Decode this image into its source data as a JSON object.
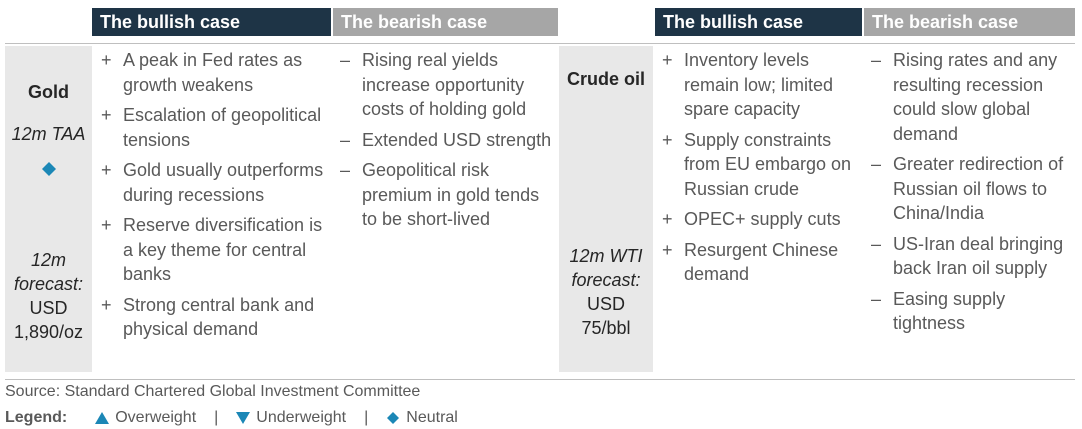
{
  "panels": [
    {
      "asset": "Gold",
      "taa": "12m TAA",
      "forecast_label": "12m forecast:",
      "forecast": "USD 1,890/oz",
      "bullish_header": "The bullish case",
      "bearish_header": "The bearish case",
      "bullish_marker": "+",
      "bearish_marker": "–",
      "bullish": [
        "A peak in Fed rates as growth weakens",
        "Escalation of geopolitical tensions",
        "Gold usually outperforms during recessions",
        "Reserve diversification is a key theme for central banks",
        "Strong central bank and physical demand"
      ],
      "bearish": [
        "Rising real yields increase opportunity costs of holding gold",
        "Extended USD strength",
        "Geopolitical risk premium in gold tends to be short-lived"
      ]
    },
    {
      "asset": "Crude oil",
      "forecast_label": "12m WTI forecast:",
      "forecast": "USD 75/bbl",
      "bullish_header": "The bullish case",
      "bearish_header": "The bearish case",
      "bullish_marker": "+",
      "bearish_marker": "–",
      "bullish": [
        "Inventory levels remain low; limited spare capacity",
        "Supply constraints from EU embargo on Russian crude",
        "OPEC+ supply cuts",
        "Resurgent Chinese demand"
      ],
      "bearish": [
        "Rising rates and any resulting recession could slow global demand",
        "Greater redirection of Russian oil flows to China/India",
        "US-Iran deal bringing back Iran oil supply",
        "Easing supply tightness"
      ]
    }
  ],
  "source": "Source: Standard Chartered Global Investment Committee",
  "legend": {
    "title": "Legend:",
    "separator": "|",
    "items": [
      "Overweight",
      "Underweight",
      "Neutral"
    ]
  }
}
